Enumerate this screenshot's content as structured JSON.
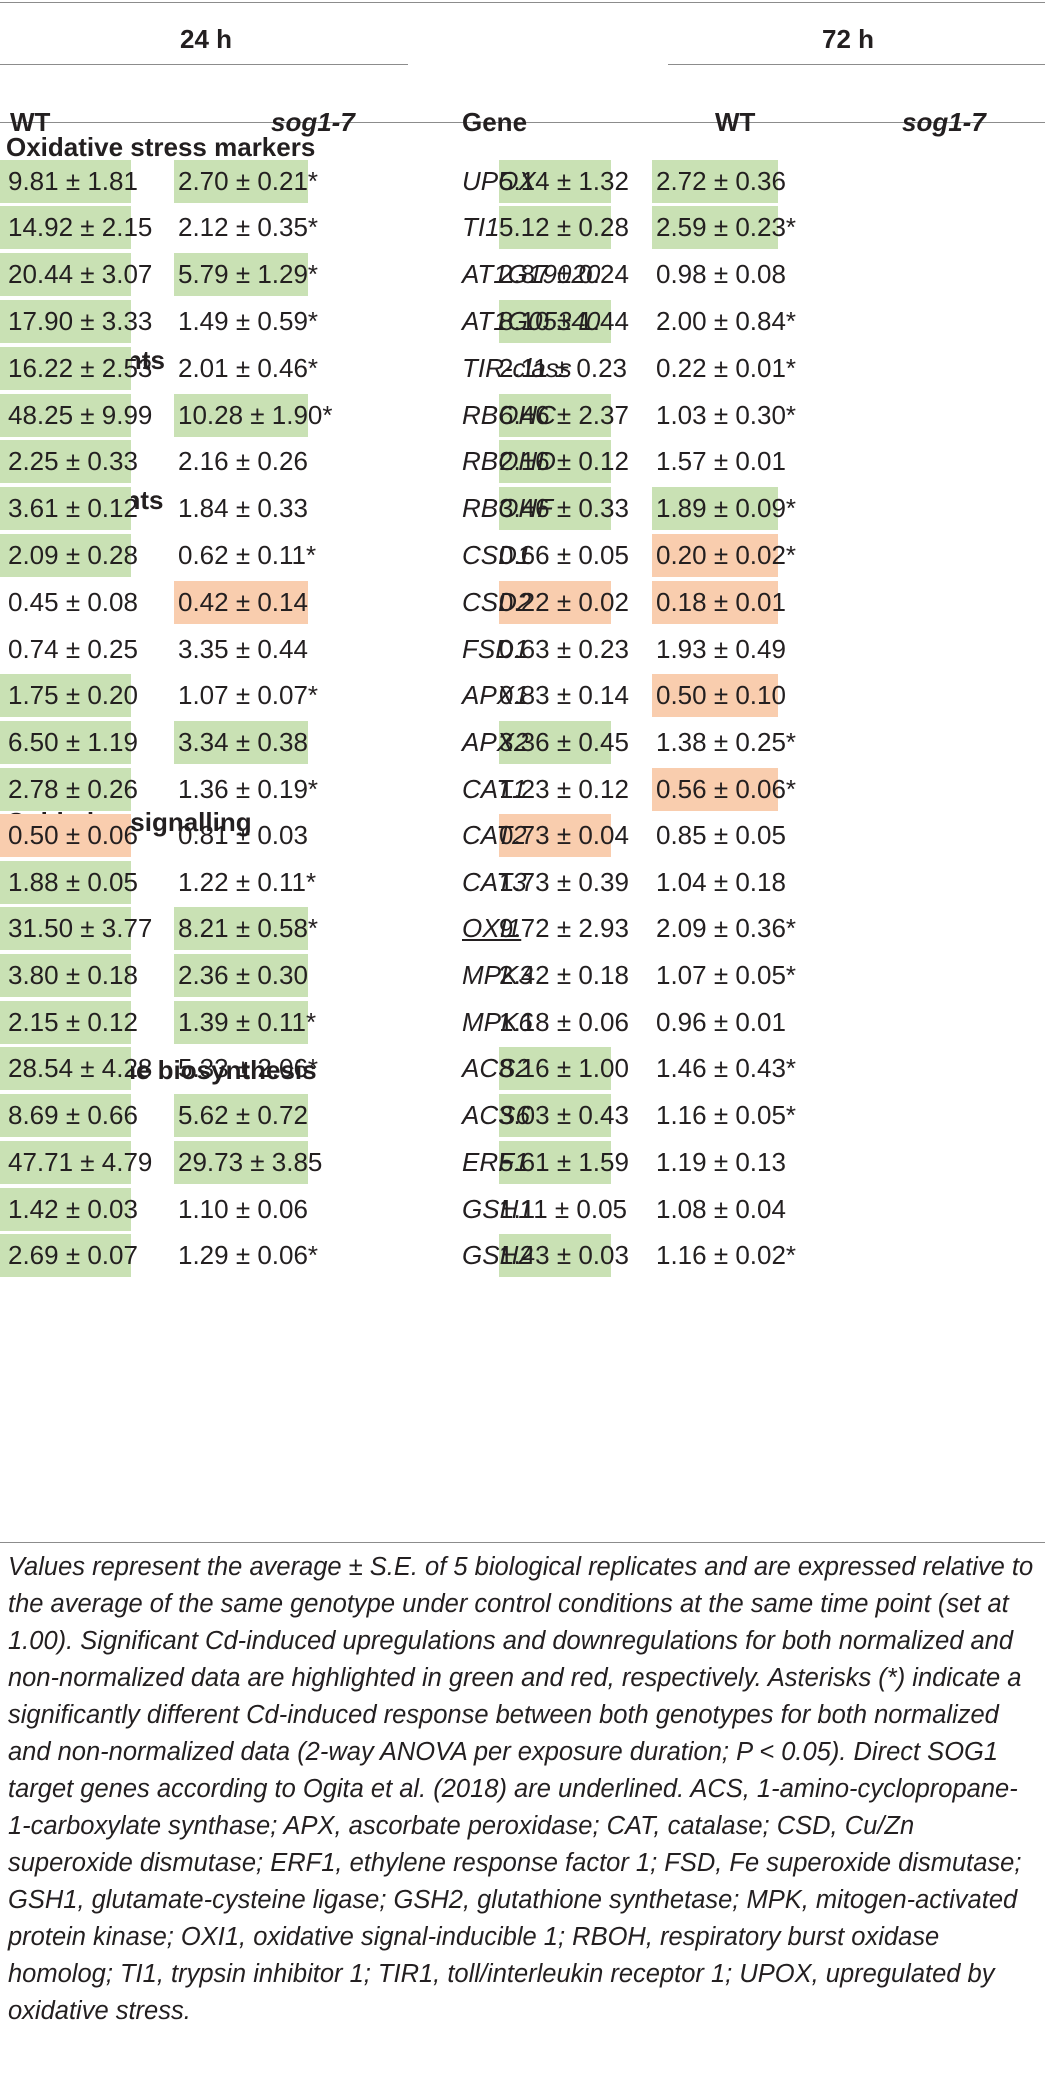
{
  "headers": {
    "t24": "24 h",
    "t72": "72 h",
    "wt24": "WT",
    "sog24": "sog1-7",
    "gene": "Gene",
    "wt72": "WT",
    "sog72": "sog1-7"
  },
  "sections": [
    "Oxidative stress markers",
    "Pro-oxidants",
    "Antioxidants",
    "Oxidative signalling",
    "Glutathione biosynthesis"
  ],
  "rows": [
    {
      "gene": "UPOX",
      "wt24": "9.81 ± 1.81",
      "sog24": "2.70 ± 0.21*",
      "wt72": "5.14 ± 1.32",
      "sog72": "2.72 ± 0.36",
      "hl": [
        "up",
        "up",
        "up",
        "up"
      ],
      "underline": false
    },
    {
      "gene": "TI1",
      "wt24": "14.92 ± 2.15",
      "sog24": "2.12 ± 0.35*",
      "wt72": "5.12 ± 0.28",
      "sog72": "2.59 ± 0.23*",
      "hl": [
        "up",
        "",
        "up",
        "up"
      ],
      "underline": false
    },
    {
      "gene": "AT1G19020",
      "wt24": "20.44 ± 3.07",
      "sog24": "5.79 ± 1.29*",
      "wt72": "2.87 ± 0.24",
      "sog72": "0.98 ± 0.08",
      "hl": [
        "up",
        "up",
        "",
        ""
      ],
      "underline": false
    },
    {
      "gene": "AT1G05340",
      "wt24": "17.90 ± 3.33",
      "sog24": "1.49 ± 0.59*",
      "wt72": "8.10 ± 1.44",
      "sog72": "2.00 ± 0.84*",
      "hl": [
        "up",
        "",
        "up",
        ""
      ],
      "underline": false
    },
    {
      "gene": "TIR-class",
      "wt24": "16.22 ± 2.53",
      "sog24": "2.01 ± 0.46*",
      "wt72": "2.11 ± 0.23",
      "sog72": "0.22 ± 0.01*",
      "hl": [
        "up",
        "",
        "",
        ""
      ],
      "underline": false
    },
    {
      "gene": "RBOHC",
      "wt24": "48.25 ± 9.99",
      "sog24": "10.28 ± 1.90*",
      "wt72": "6.46 ± 2.37",
      "sog72": "1.03 ± 0.30*",
      "hl": [
        "up",
        "up",
        "up",
        ""
      ],
      "underline": false
    },
    {
      "gene": "RBOHD",
      "wt24": "2.25 ± 0.33",
      "sog24": "2.16 ± 0.26",
      "wt72": "2.16 ± 0.12",
      "sog72": "1.57 ± 0.01",
      "hl": [
        "up",
        "",
        "up",
        ""
      ],
      "underline": false
    },
    {
      "gene": "RBOHF",
      "wt24": "3.61 ± 0.12",
      "sog24": "1.84 ± 0.33",
      "wt72": "3.46 ± 0.33",
      "sog72": "1.89 ± 0.09*",
      "hl": [
        "up",
        "",
        "up",
        "up"
      ],
      "underline": false
    },
    {
      "gene": "CSD1",
      "wt24": "2.09 ± 0.28",
      "sog24": "0.62 ± 0.11*",
      "wt72": "0.66 ± 0.05",
      "sog72": "0.20 ± 0.02*",
      "hl": [
        "up",
        "",
        "",
        "down"
      ],
      "underline": false
    },
    {
      "gene": "CSD2",
      "wt24": "0.45 ± 0.08",
      "sog24": "0.42 ± 0.14",
      "wt72": "0.22 ± 0.02",
      "sog72": "0.18 ± 0.01",
      "hl": [
        "",
        "down",
        "down",
        "down"
      ],
      "underline": false
    },
    {
      "gene": "FSD1",
      "wt24": "0.74 ± 0.25",
      "sog24": "3.35 ± 0.44",
      "wt72": "0.63 ± 0.23",
      "sog72": "1.93 ± 0.49",
      "hl": [
        "",
        "",
        "",
        ""
      ],
      "underline": false
    },
    {
      "gene": "APX1",
      "wt24": "1.75 ± 0.20",
      "sog24": "1.07 ± 0.07*",
      "wt72": "0.83 ± 0.14",
      "sog72": "0.50 ± 0.10",
      "hl": [
        "up",
        "",
        "",
        "down"
      ],
      "underline": false
    },
    {
      "gene": "APX2",
      "wt24": "6.50 ± 1.19",
      "sog24": "3.34 ± 0.38",
      "wt72": "3.36 ± 0.45",
      "sog72": "1.38 ± 0.25*",
      "hl": [
        "up",
        "up",
        "up",
        ""
      ],
      "underline": false
    },
    {
      "gene": "CAT1",
      "wt24": "2.78 ± 0.26",
      "sog24": "1.36 ± 0.19*",
      "wt72": "1.23 ± 0.12",
      "sog72": "0.56 ± 0.06*",
      "hl": [
        "up",
        "",
        "",
        "down"
      ],
      "underline": false
    },
    {
      "gene": "CAT2",
      "wt24": "0.50 ± 0.06",
      "sog24": "0.81 ± 0.03",
      "wt72": "0.73 ± 0.04",
      "sog72": "0.85 ± 0.05",
      "hl": [
        "down",
        "",
        "down",
        ""
      ],
      "underline": false
    },
    {
      "gene": "CAT3",
      "wt24": "1.88 ± 0.05",
      "sog24": "1.22 ± 0.11*",
      "wt72": "1.73 ± 0.39",
      "sog72": "1.04 ± 0.18",
      "hl": [
        "up",
        "",
        "",
        ""
      ],
      "underline": false
    },
    {
      "gene": "OXI1",
      "wt24": "31.50 ± 3.77",
      "sog24": "8.21 ± 0.58*",
      "wt72": "9.72 ± 2.93",
      "sog72": "2.09 ± 0.36*",
      "hl": [
        "up",
        "up",
        "",
        ""
      ],
      "underline": true
    },
    {
      "gene": "MPK3",
      "wt24": "3.80 ± 0.18",
      "sog24": "2.36 ± 0.30",
      "wt72": "2.42 ± 0.18",
      "sog72": "1.07 ± 0.05*",
      "hl": [
        "up",
        "up",
        "",
        ""
      ],
      "underline": false
    },
    {
      "gene": "MPK6",
      "wt24": "2.15 ± 0.12",
      "sog24": "1.39 ± 0.11*",
      "wt72": "1.18 ± 0.06",
      "sog72": "0.96 ± 0.01",
      "hl": [
        "up",
        "up",
        "",
        ""
      ],
      "underline": false
    },
    {
      "gene": "ACS2",
      "wt24": "28.54 ± 4.28",
      "sog24": "5.33 ± 2.06*",
      "wt72": "8.16 ± 1.00",
      "sog72": "1.46 ± 0.43*",
      "hl": [
        "up",
        "",
        "up",
        ""
      ],
      "underline": false
    },
    {
      "gene": "ACS6",
      "wt24": "8.69 ± 0.66",
      "sog24": "5.62 ± 0.72",
      "wt72": "3.03 ± 0.43",
      "sog72": "1.16 ± 0.05*",
      "hl": [
        "up",
        "up",
        "up",
        ""
      ],
      "underline": false
    },
    {
      "gene": "ERF1",
      "wt24": "47.71 ± 4.79",
      "sog24": "29.73 ± 3.85",
      "wt72": "5.61 ± 1.59",
      "sog72": "1.19 ± 0.13",
      "hl": [
        "up",
        "up",
        "up",
        ""
      ],
      "underline": false
    },
    {
      "gene": "GSH1",
      "wt24": "1.42 ± 0.03",
      "sog24": "1.10 ± 0.06",
      "wt72": "1.11 ± 0.05",
      "sog72": "1.08 ± 0.04",
      "hl": [
        "up",
        "",
        "",
        ""
      ],
      "underline": false
    },
    {
      "gene": "GSH2",
      "wt24": "2.69 ± 0.07",
      "sog24": "1.29 ± 0.06*",
      "wt72": "1.43 ± 0.03",
      "sog72": "1.16 ± 0.02*",
      "hl": [
        "up",
        "",
        "up",
        ""
      ],
      "underline": false
    }
  ],
  "footnote": "Values represent the average ± S.E. of 5 biological replicates and are expressed relative to the average of the same genotype under control conditions at the same time point (set at 1.00). Significant Cd-induced upregulations and downregulations for both normalized and non-normalized data are highlighted in green and red, respectively. Asterisks (*) indicate a significantly different Cd-induced response between both genotypes for both normalized and non-normalized data (2-way ANOVA per exposure duration; P < 0.05). Direct SOG1 target genes according to Ogita et al. (2018) are underlined. ACS, 1-amino-cyclopropane-1-carboxylate synthase; APX, ascorbate peroxidase; CAT, catalase; CSD, Cu/Zn superoxide dismutase; ERF1, ethylene response factor 1; FSD, Fe superoxide dismutase; GSH1, glutamate-cysteine ligase; GSH2, glutathione synthetase; MPK, mitogen-activated protein kinase; OXI1, oxidative signal-inducible 1; RBOH, respiratory burst oxidase homolog; TI1, trypsin inhibitor 1; TIR1, toll/interleukin receptor 1; UPOX, upregulated by oxidative stress.",
  "colors": {
    "upregulated": "#c9e1b4",
    "downregulated": "#f9cdae"
  }
}
